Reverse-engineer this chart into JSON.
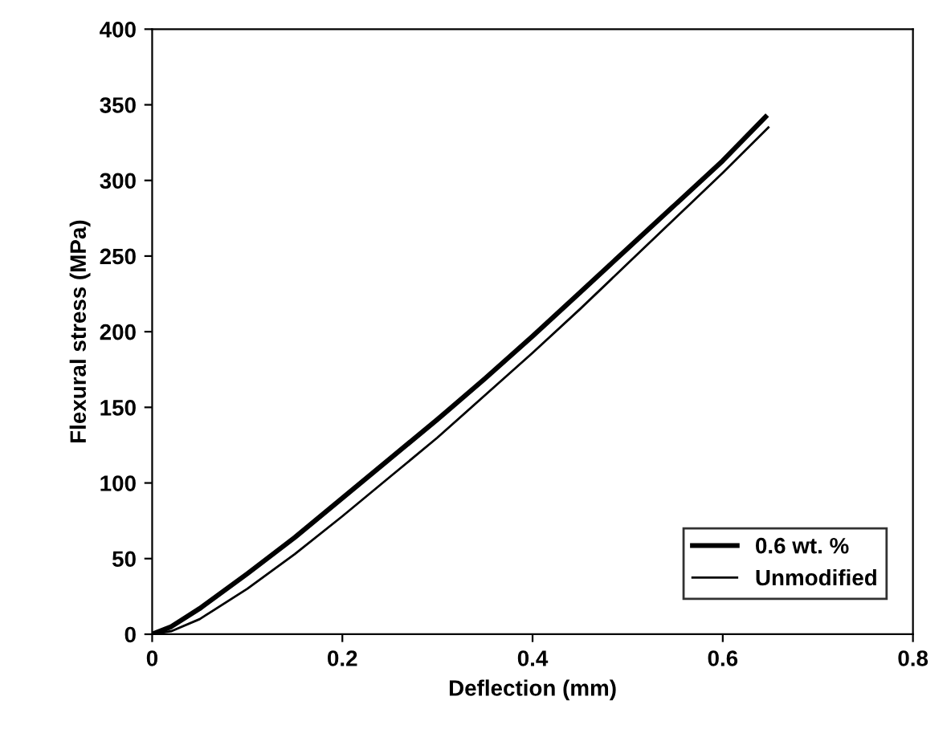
{
  "chart_data": {
    "type": "line",
    "xlabel": "Deflection (mm)",
    "ylabel": "Flexural stress (MPa)",
    "xlim": [
      0,
      0.8
    ],
    "ylim": [
      0,
      400
    ],
    "xticks": [
      0,
      0.2,
      0.4,
      0.6,
      0.8
    ],
    "yticks": [
      0,
      50,
      100,
      150,
      200,
      250,
      300,
      350,
      400
    ],
    "grid": false,
    "legend": "bottom right",
    "marker": "none",
    "line_style": "solid",
    "series": [
      {
        "name": "0.6 wt. %",
        "color": "#000000",
        "x": [
          0,
          0.02,
          0.05,
          0.1,
          0.15,
          0.2,
          0.25,
          0.3,
          0.35,
          0.4,
          0.45,
          0.5,
          0.55,
          0.6,
          0.645
        ],
        "values": [
          0,
          5,
          17,
          40,
          64,
          90,
          116,
          142,
          169,
          197,
          226,
          255,
          284,
          313,
          342
        ]
      },
      {
        "name": "Unmodified",
        "color": "#000000",
        "x": [
          0,
          0.02,
          0.05,
          0.1,
          0.15,
          0.2,
          0.25,
          0.3,
          0.35,
          0.4,
          0.45,
          0.5,
          0.55,
          0.6,
          0.648
        ],
        "values": [
          0,
          2,
          10,
          30,
          53,
          78,
          104,
          130,
          158,
          186,
          215,
          245,
          275,
          305,
          335
        ]
      }
    ]
  }
}
